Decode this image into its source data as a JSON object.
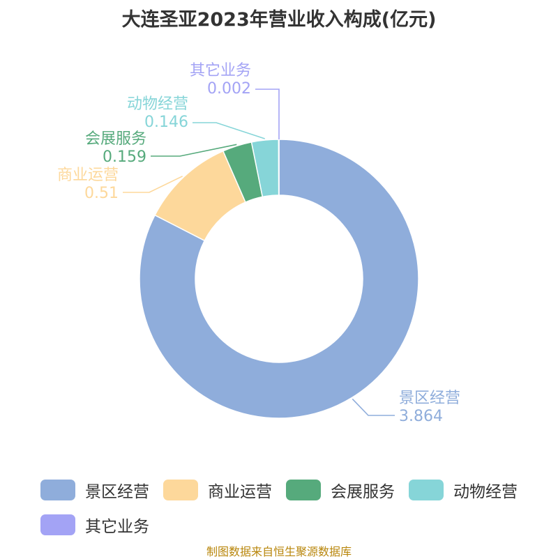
{
  "chart_data": {
    "type": "pie",
    "title": "大连圣亚2023年营业收入构成(亿元)",
    "series": [
      {
        "name": "景区经营",
        "value": 3.864,
        "label": "3.864",
        "color": "#8FADDB"
      },
      {
        "name": "商业运营",
        "value": 0.51,
        "label": "0.51",
        "color": "#FDD89B"
      },
      {
        "name": "会展服务",
        "value": 0.159,
        "label": "0.159",
        "color": "#56AA7C"
      },
      {
        "name": "动物经营",
        "value": 0.146,
        "label": "0.146",
        "color": "#86D5D8"
      },
      {
        "name": "其它业务",
        "value": 0.002,
        "label": "0.002",
        "color": "#A3A3F5"
      }
    ],
    "legend_position": "bottom"
  },
  "source": "制图数据来自恒生聚源数据库"
}
